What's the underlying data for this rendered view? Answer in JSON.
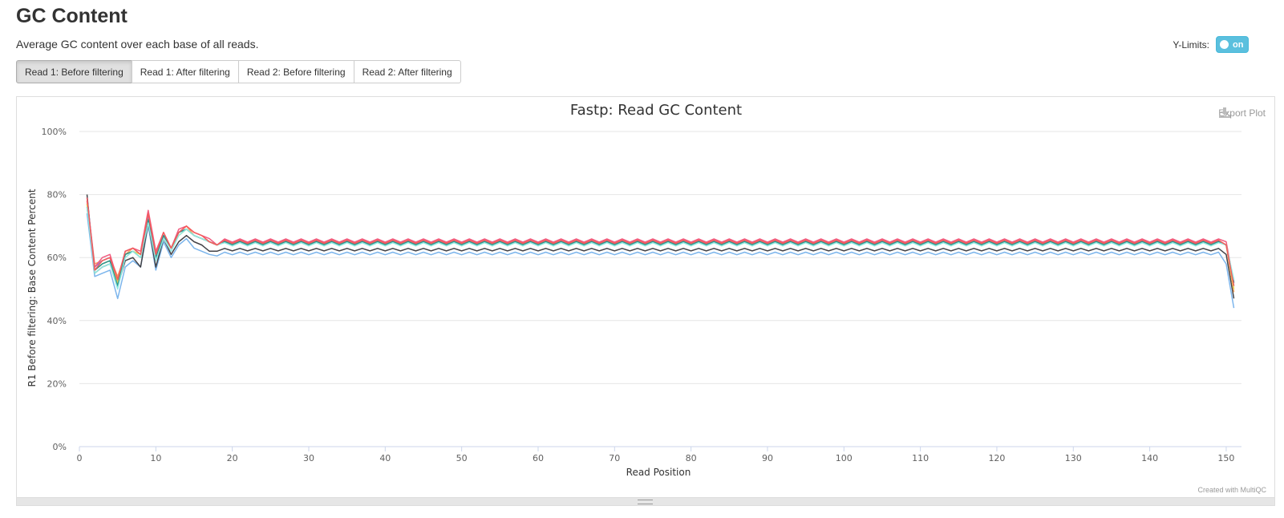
{
  "header": {
    "title": "GC Content",
    "subtitle": "Average GC content over each base of all reads."
  },
  "ylimits": {
    "label": "Y-Limits:",
    "toggle": "on"
  },
  "tabs": [
    {
      "label": "Read 1: Before filtering",
      "active": true
    },
    {
      "label": "Read 1: After filtering",
      "active": false
    },
    {
      "label": "Read 2: Before filtering",
      "active": false
    },
    {
      "label": "Read 2: After filtering",
      "active": false
    }
  ],
  "plot": {
    "export_label": "Export Plot",
    "credit": "Created with MultiQC"
  },
  "chart_data": {
    "type": "line",
    "title": "Fastp: Read GC Content",
    "xlabel": "Read Position",
    "ylabel": "R1 Before filtering: Base Content Percent",
    "xlim": [
      0,
      152
    ],
    "ylim": [
      0,
      100
    ],
    "xticks": [
      0,
      10,
      20,
      30,
      40,
      50,
      60,
      70,
      80,
      90,
      100,
      110,
      120,
      130,
      140,
      150
    ],
    "yticks": [
      "0%",
      "20%",
      "40%",
      "60%",
      "80%",
      "100%"
    ],
    "grid": true,
    "x_start": 1,
    "series": [
      {
        "color": "#7cb5ec",
        "head": [
          74,
          54,
          55,
          56,
          47,
          57,
          59,
          57,
          70,
          56,
          65,
          60,
          64,
          66,
          63,
          62,
          61,
          60.5
        ],
        "plateau": 61.3,
        "amp": 0.4,
        "tail": [
          58,
          44
        ]
      },
      {
        "color": "#434348",
        "head": [
          80,
          55,
          57,
          58,
          51,
          59,
          60,
          57,
          71,
          57,
          66,
          61,
          65,
          67,
          65,
          64,
          62,
          62
        ],
        "plateau": 62.5,
        "amp": 0.4,
        "tail": [
          61,
          47
        ]
      },
      {
        "color": "#90ed7d",
        "head": [
          77,
          56,
          58,
          59,
          52,
          61,
          62,
          60,
          72,
          60,
          67,
          63,
          68,
          69,
          67,
          66,
          65,
          64
        ],
        "plateau": 64.3,
        "amp": 0.5,
        "tail": [
          64,
          51
        ]
      },
      {
        "color": "#f7a35c",
        "head": [
          78,
          58,
          59,
          60,
          54,
          61,
          63,
          61,
          73,
          61,
          67,
          63,
          68,
          70,
          67,
          66,
          65,
          64
        ],
        "plateau": 65.0,
        "amp": 0.5,
        "tail": [
          64,
          49
        ]
      },
      {
        "color": "#8085e9",
        "head": [
          79,
          57,
          59,
          60,
          53,
          62,
          63,
          61,
          73,
          61,
          67,
          63,
          68,
          69,
          67,
          66,
          65,
          64
        ],
        "plateau": 64.8,
        "amp": 0.5,
        "tail": [
          64,
          51
        ]
      },
      {
        "color": "#f15c80",
        "head": [
          78,
          57,
          60,
          61,
          53,
          62,
          63,
          62,
          75,
          62,
          68,
          63,
          69,
          70,
          68,
          67,
          66,
          64
        ],
        "plateau": 65.4,
        "amp": 0.5,
        "tail": [
          65,
          52
        ]
      },
      {
        "color": "#e4d354",
        "head": [
          77,
          56,
          58,
          59,
          52,
          61,
          62,
          61,
          72,
          60,
          67,
          63,
          67,
          69,
          67,
          66,
          65,
          64
        ],
        "plateau": 64.6,
        "amp": 0.5,
        "tail": [
          64,
          50
        ]
      },
      {
        "color": "#2b908f",
        "head": [
          76,
          56,
          58,
          59,
          51,
          61,
          62,
          60,
          72,
          60,
          67,
          63,
          68,
          69,
          67,
          66,
          65,
          64
        ],
        "plateau": 64.6,
        "amp": 0.5,
        "tail": [
          64,
          52
        ]
      },
      {
        "color": "#91e8e1",
        "head": [
          76,
          55,
          57,
          58,
          50,
          60,
          62,
          60,
          71,
          59,
          66,
          62,
          67,
          69,
          67,
          66,
          65,
          64
        ],
        "plateau": 64.2,
        "amp": 0.5,
        "tail": [
          64,
          53
        ]
      },
      {
        "color": "#f45b5b",
        "head": [
          79,
          56,
          59,
          60,
          53,
          62,
          63,
          61,
          74,
          61,
          68,
          63,
          68,
          70,
          68,
          67,
          65,
          64
        ],
        "plateau": 65.0,
        "amp": 0.5,
        "tail": [
          64,
          51
        ]
      }
    ]
  }
}
